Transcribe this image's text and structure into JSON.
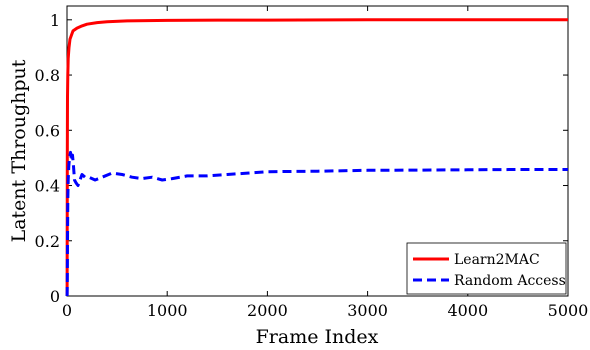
{
  "chart_data": {
    "type": "line",
    "title": "",
    "xlabel": "Frame Index",
    "ylabel": "Latent Throughput",
    "xlim": [
      0,
      5000
    ],
    "ylim": [
      0,
      1.05
    ],
    "xticks": [
      0,
      1000,
      2000,
      3000,
      4000,
      5000
    ],
    "xtick_labels": [
      "0",
      "1000",
      "2000",
      "3000",
      "4000",
      "5000"
    ],
    "yticks": [
      0,
      0.2,
      0.4,
      0.6,
      0.8,
      1
    ],
    "ytick_labels": [
      "0",
      "0.2",
      "0.4",
      "0.6",
      "0.8",
      "1"
    ],
    "grid": false,
    "legend_position": "bottom-right",
    "series": [
      {
        "name": "Learn2MAC",
        "color": "#ff0000",
        "style": "solid",
        "x": [
          1,
          3,
          5,
          8,
          12,
          20,
          30,
          40,
          60,
          80,
          100,
          150,
          200,
          300,
          400,
          600,
          800,
          1000,
          1500,
          2000,
          3000,
          4000,
          5000
        ],
        "y": [
          0.0,
          0.5,
          0.72,
          0.8,
          0.86,
          0.9,
          0.93,
          0.94,
          0.96,
          0.965,
          0.97,
          0.978,
          0.984,
          0.99,
          0.993,
          0.996,
          0.997,
          0.998,
          0.999,
          0.999,
          1.0,
          1.0,
          1.0
        ]
      },
      {
        "name": "Random Access",
        "color": "#0000ff",
        "style": "dashed",
        "x": [
          1,
          3,
          5,
          8,
          12,
          18,
          25,
          35,
          45,
          55,
          65,
          75,
          90,
          110,
          130,
          150,
          180,
          220,
          280,
          350,
          450,
          550,
          650,
          750,
          850,
          950,
          1050,
          1200,
          1400,
          1600,
          1800,
          2000,
          2500,
          3000,
          3500,
          4000,
          4500,
          5000
        ],
        "y": [
          0.0,
          0.05,
          0.2,
          0.35,
          0.42,
          0.47,
          0.5,
          0.52,
          0.49,
          0.51,
          0.47,
          0.42,
          0.41,
          0.4,
          0.42,
          0.44,
          0.43,
          0.43,
          0.42,
          0.43,
          0.445,
          0.44,
          0.43,
          0.425,
          0.43,
          0.42,
          0.425,
          0.435,
          0.435,
          0.44,
          0.445,
          0.45,
          0.452,
          0.455,
          0.456,
          0.457,
          0.458,
          0.458
        ]
      }
    ]
  }
}
